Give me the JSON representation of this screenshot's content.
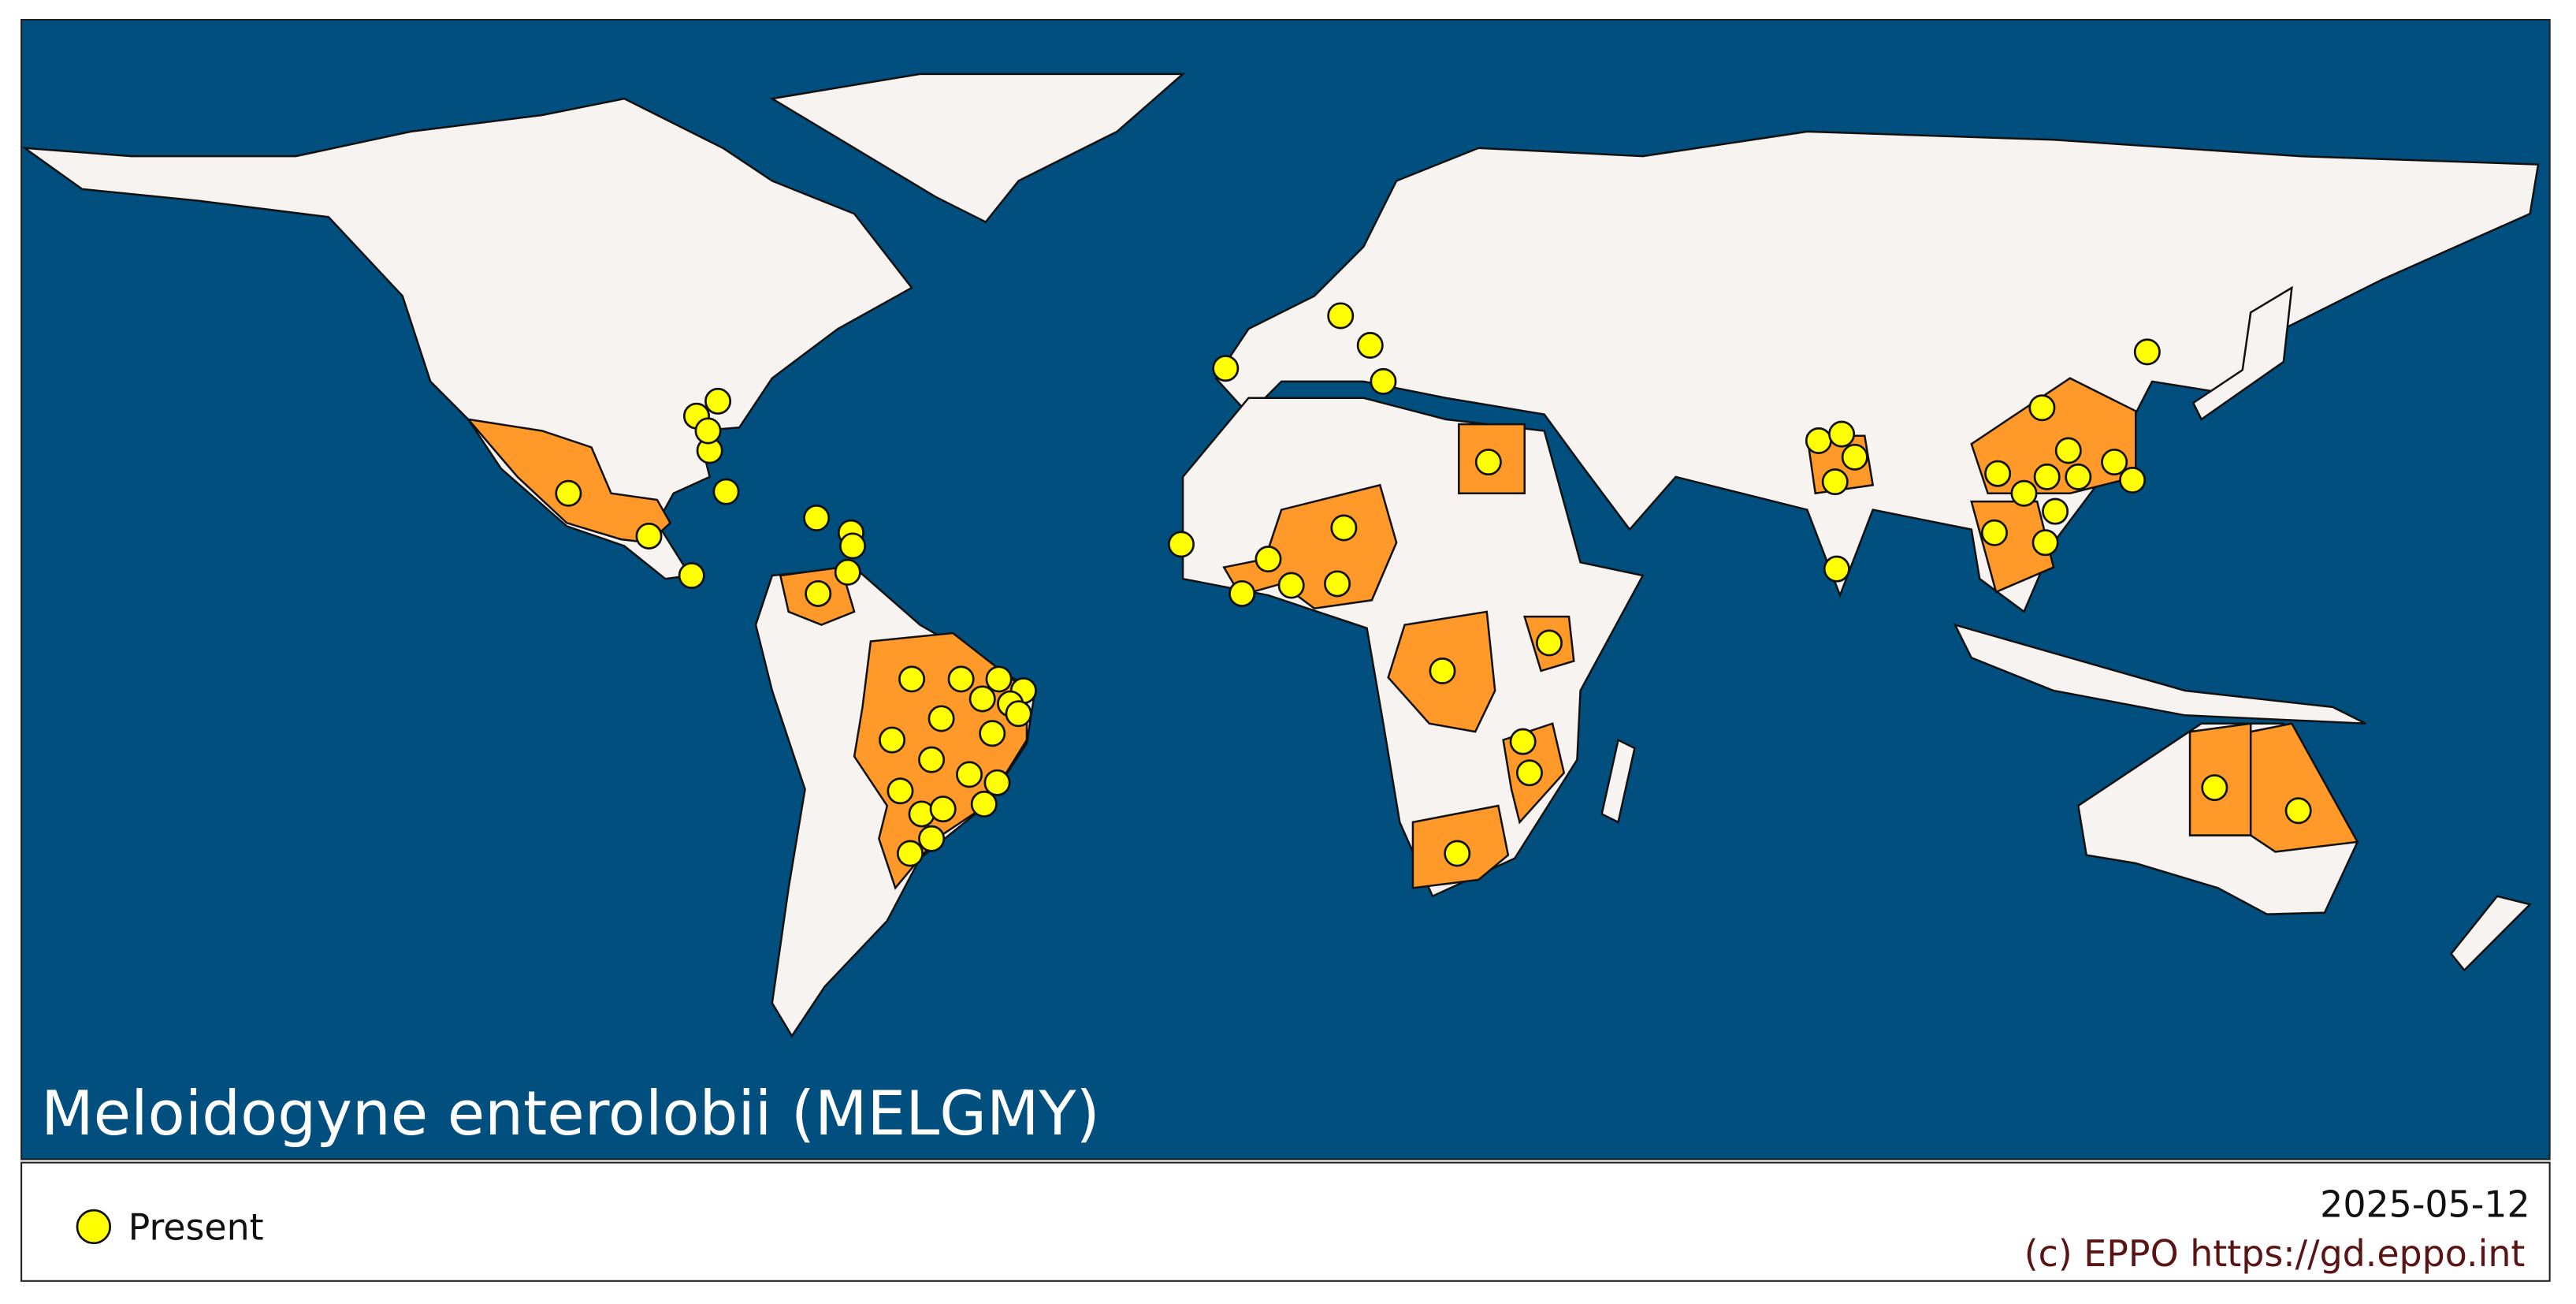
{
  "map": {
    "title": "Meloidogyne enterolobii (MELGMY)",
    "legend": {
      "label": "Present"
    },
    "date": "2025-05-12",
    "credit": "(c) EPPO https://gd.eppo.int"
  }
}
